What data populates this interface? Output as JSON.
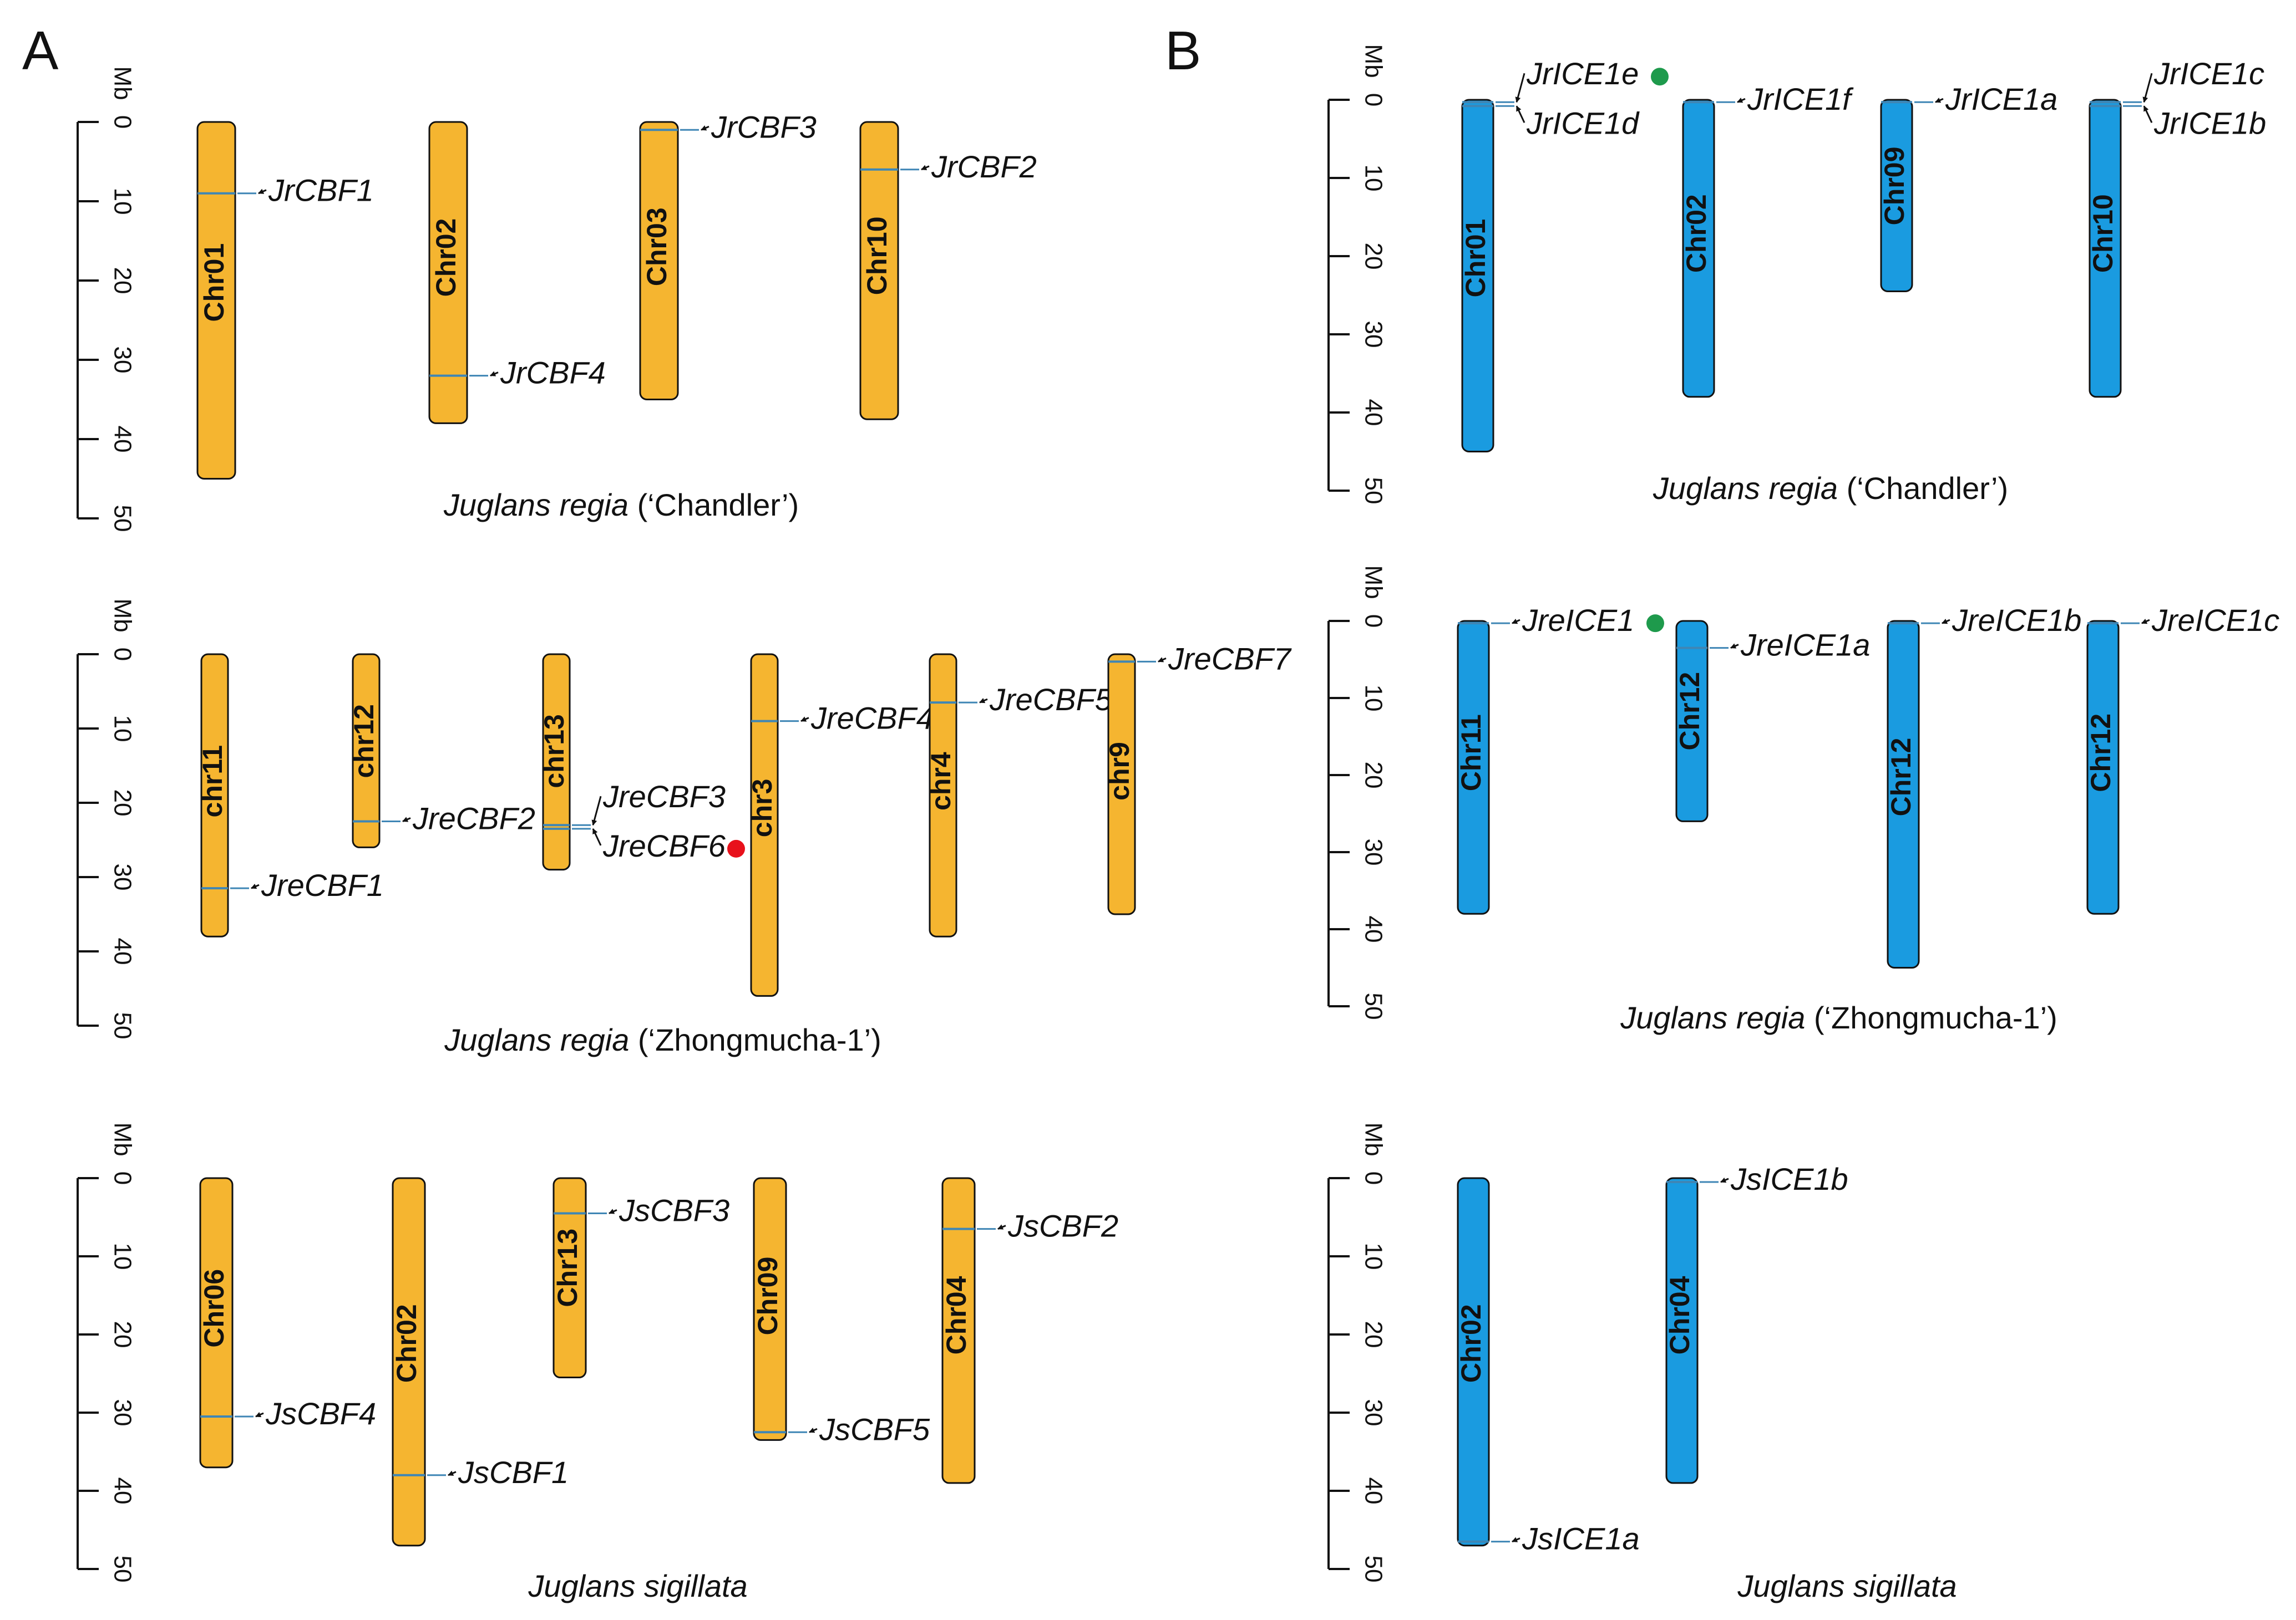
{
  "panel_letters": [
    "A",
    "B"
  ],
  "axis": {
    "unit": "Mb",
    "ticks": [
      "0",
      "10",
      "20",
      "30",
      "40",
      "50"
    ]
  },
  "colors": {
    "cbf_fill": "#F5B530",
    "ice_fill": "#1A9BE0",
    "gene_line": "#3F86B5",
    "outline": "#111111",
    "marker_red": "#E8111B",
    "marker_green": "#1E9A4C"
  },
  "chart_data": [
    {
      "type": "chromosome_map",
      "panel": "A",
      "gene_family": "CBF",
      "species": {
        "italic": "Juglans regia",
        "cultivar": " (‘Chandler’)"
      },
      "ylim": [
        0,
        50
      ],
      "chromosomes": [
        {
          "name": "Chr01",
          "length": 45,
          "genes": [
            {
              "name": "JrCBF1",
              "pos": 9
            }
          ]
        },
        {
          "name": "Chr02",
          "length": 38,
          "genes": [
            {
              "name": "JrCBF4",
              "pos": 32
            }
          ]
        },
        {
          "name": "Chr03",
          "length": 35,
          "genes": [
            {
              "name": "JrCBF3",
              "pos": 1
            }
          ]
        },
        {
          "name": "Chr10",
          "length": 37.5,
          "genes": [
            {
              "name": "JrCBF2",
              "pos": 6
            }
          ]
        }
      ]
    },
    {
      "type": "chromosome_map",
      "panel": "A",
      "gene_family": "CBF",
      "species": {
        "italic": "Juglans regia",
        "cultivar": " (‘Zhongmucha-1’)"
      },
      "ylim": [
        0,
        50
      ],
      "chromosomes": [
        {
          "name": "chr11",
          "length": 38,
          "genes": [
            {
              "name": "JreCBF1",
              "pos": 31.5
            }
          ]
        },
        {
          "name": "chr12",
          "length": 26,
          "genes": [
            {
              "name": "JreCBF2",
              "pos": 22.5
            }
          ]
        },
        {
          "name": "chr13",
          "length": 29,
          "genes": [
            {
              "name": "JreCBF3",
              "pos": 23
            },
            {
              "name": "JreCBF6",
              "pos": 23.5,
              "marker": "red"
            }
          ]
        },
        {
          "name": "chr3",
          "length": 46,
          "genes": [
            {
              "name": "JreCBF4",
              "pos": 9
            }
          ]
        },
        {
          "name": "chr4",
          "length": 38,
          "genes": [
            {
              "name": "JreCBF5",
              "pos": 6.5
            }
          ]
        },
        {
          "name": "chr9",
          "length": 35,
          "genes": [
            {
              "name": "JreCBF7",
              "pos": 1
            }
          ]
        }
      ]
    },
    {
      "type": "chromosome_map",
      "panel": "A",
      "gene_family": "CBF",
      "species": {
        "italic": "Juglans sigillata",
        "cultivar": ""
      },
      "ylim": [
        0,
        50
      ],
      "chromosomes": [
        {
          "name": "Chr06",
          "length": 37,
          "genes": [
            {
              "name": "JsCBF4",
              "pos": 30.5
            }
          ]
        },
        {
          "name": "Chr02",
          "length": 47,
          "genes": [
            {
              "name": "JsCBF1",
              "pos": 38
            }
          ]
        },
        {
          "name": "Chr13",
          "length": 25.5,
          "genes": [
            {
              "name": "JsCBF3",
              "pos": 4.5
            }
          ]
        },
        {
          "name": "Chr09",
          "length": 33.5,
          "genes": [
            {
              "name": "JsCBF5",
              "pos": 32.5
            }
          ]
        },
        {
          "name": "Chr04",
          "length": 39,
          "genes": [
            {
              "name": "JsCBF2",
              "pos": 6.5
            }
          ]
        }
      ]
    },
    {
      "type": "chromosome_map",
      "panel": "B",
      "gene_family": "ICE1",
      "species": {
        "italic": "Juglans regia",
        "cultivar": " (‘Chandler’)"
      },
      "ylim": [
        0,
        50
      ],
      "chromosomes": [
        {
          "name": "Chr01",
          "length": 45,
          "genes": [
            {
              "name": "JrICE1e",
              "pos": 0.3,
              "marker": "green"
            },
            {
              "name": "JrICE1d",
              "pos": 0.8
            }
          ]
        },
        {
          "name": "Chr02",
          "length": 38,
          "genes": [
            {
              "name": "JrICE1f",
              "pos": 0.3
            }
          ]
        },
        {
          "name": "Chr09",
          "length": 24.5,
          "genes": [
            {
              "name": "JrICE1a",
              "pos": 0.3
            }
          ]
        },
        {
          "name": "Chr10",
          "length": 38,
          "genes": [
            {
              "name": "JrICE1c",
              "pos": 0.3
            },
            {
              "name": "JrICE1b",
              "pos": 0.8
            }
          ]
        }
      ]
    },
    {
      "type": "chromosome_map",
      "panel": "B",
      "gene_family": "ICE1",
      "species": {
        "italic": "Juglans regia",
        "cultivar": " (‘Zhongmucha-1’)"
      },
      "ylim": [
        0,
        50
      ],
      "chromosomes": [
        {
          "name": "Chr11",
          "length": 38,
          "genes": [
            {
              "name": "JreICE1",
              "pos": 0.3,
              "marker": "green"
            }
          ]
        },
        {
          "name": "Chr12",
          "length": 26,
          "genes": [
            {
              "name": "JreICE1a",
              "pos": 3.5
            }
          ]
        },
        {
          "name": "Chr12",
          "length": 45,
          "genes": [
            {
              "name": "JreICE1b",
              "pos": 0.3
            }
          ]
        },
        {
          "name": "Chr12",
          "length": 38,
          "genes": [
            {
              "name": "JreICE1c",
              "pos": 0.3
            }
          ]
        }
      ]
    },
    {
      "type": "chromosome_map",
      "panel": "B",
      "gene_family": "ICE1",
      "species": {
        "italic": "Juglans sigillata",
        "cultivar": ""
      },
      "ylim": [
        0,
        50
      ],
      "chromosomes": [
        {
          "name": "Chr02",
          "length": 47,
          "genes": [
            {
              "name": "JsICE1a",
              "pos": 46.5
            }
          ]
        },
        {
          "name": "Chr04",
          "length": 39,
          "genes": [
            {
              "name": "JsICE1b",
              "pos": 0.5
            }
          ]
        }
      ]
    }
  ]
}
